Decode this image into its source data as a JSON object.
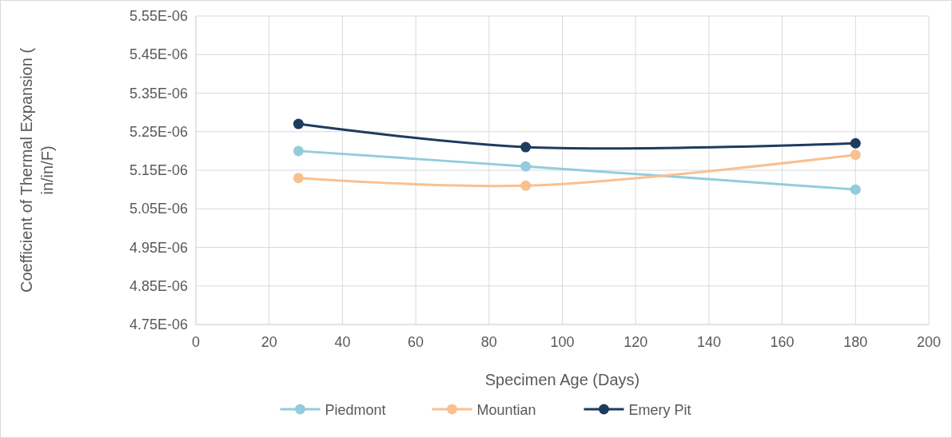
{
  "chart_data": {
    "type": "line",
    "xlabel": "Specimen Age (Days)",
    "ylabel": "Coefficient of Thermal Expansion ( in/in/F)",
    "x": [
      28,
      90,
      180
    ],
    "series": [
      {
        "name": "Piedmont",
        "color": "#92cddc",
        "values": [
          5.2e-06,
          5.16e-06,
          5.1e-06
        ]
      },
      {
        "name": "Mountian",
        "color": "#fac090",
        "values": [
          5.13e-06,
          5.11e-06,
          5.19e-06
        ]
      },
      {
        "name": "Emery Pit",
        "color": "#1f3b5e",
        "values": [
          5.27e-06,
          5.21e-06,
          5.22e-06
        ]
      }
    ],
    "xlim": [
      0,
      200
    ],
    "xticks": [
      0,
      20,
      40,
      60,
      80,
      100,
      120,
      140,
      160,
      180,
      200
    ],
    "ylim": [
      4.75e-06,
      5.55e-06
    ],
    "yticks": [
      {
        "value": 4.75e-06,
        "label": "4.75E-06"
      },
      {
        "value": 4.85e-06,
        "label": "4.85E-06"
      },
      {
        "value": 4.95e-06,
        "label": "4.95E-06"
      },
      {
        "value": 5.05e-06,
        "label": "5.05E-06"
      },
      {
        "value": 5.15e-06,
        "label": "5.15E-06"
      },
      {
        "value": 5.25e-06,
        "label": "5.25E-06"
      },
      {
        "value": 5.35e-06,
        "label": "5.35E-06"
      },
      {
        "value": 5.45e-06,
        "label": "5.45E-06"
      },
      {
        "value": 5.55e-06,
        "label": "5.55E-06"
      }
    ],
    "grid": true,
    "legend": "bottom",
    "marker": "circle",
    "line_style": "solid"
  }
}
